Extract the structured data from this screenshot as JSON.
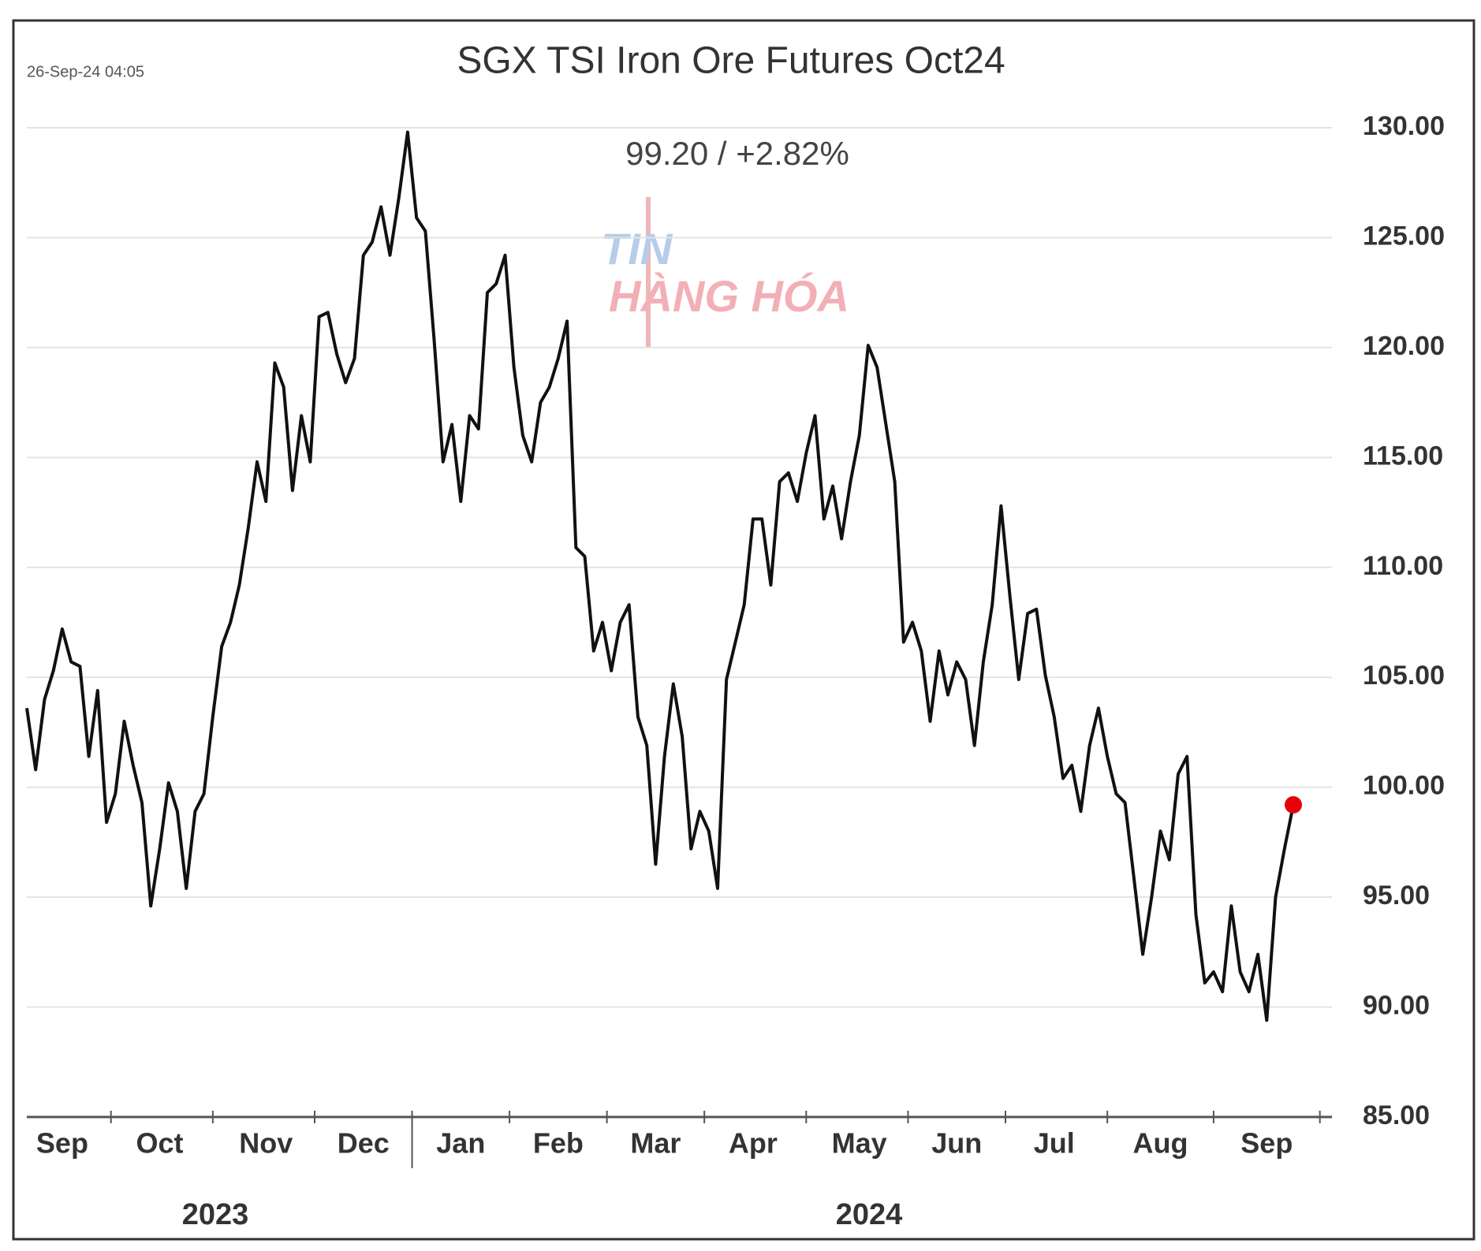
{
  "chart_data": {
    "type": "line",
    "title": "SGX TSI Iron Ore Futures Oct24",
    "subtitle": "99.20  /  +2.82%",
    "timestamp": "26-Sep-24 04:05",
    "watermark": [
      "TIN",
      "HÀNG HÓA"
    ],
    "annotations": [
      "2023",
      "2024"
    ],
    "categories": [
      null,
      null,
      null,
      null,
      "Sep",
      null,
      null,
      null,
      null,
      null,
      null,
      null,
      null,
      null,
      null,
      "Oct",
      null,
      null,
      null,
      null,
      null,
      null,
      null,
      null,
      null,
      null,
      null,
      "Nov",
      null,
      null,
      null,
      null,
      null,
      null,
      null,
      null,
      null,
      null,
      "Dec",
      null,
      null,
      null,
      null,
      null,
      null,
      null,
      null,
      null,
      null,
      "Jan",
      null,
      null,
      null,
      null,
      null,
      null,
      null,
      null,
      null,
      null,
      "Feb",
      null,
      null,
      null,
      null,
      null,
      null,
      null,
      null,
      null,
      null,
      "Mar",
      null,
      null,
      null,
      null,
      null,
      null,
      null,
      null,
      null,
      null,
      "Apr",
      null,
      null,
      null,
      null,
      null,
      null,
      null,
      null,
      null,
      null,
      null,
      "May",
      null,
      null,
      null,
      null,
      null,
      null,
      null,
      null,
      null,
      null,
      "Jun",
      null,
      null,
      null,
      null,
      null,
      null,
      null,
      null,
      null,
      null,
      "Jul",
      null,
      null,
      null,
      null,
      null,
      null,
      null,
      null,
      null,
      null,
      null,
      "Aug",
      null,
      null,
      null,
      null,
      null,
      null,
      null,
      null,
      null,
      null,
      null,
      "Sep",
      null,
      null,
      null
    ],
    "series": [
      {
        "name": "SGX TSI Iron Ore Futures Oct24",
        "color": "#111111",
        "values": [
          103.6,
          100.8,
          104.0,
          105.3,
          107.2,
          105.7,
          105.5,
          101.4,
          104.4,
          98.4,
          99.7,
          103.0,
          101.0,
          99.3,
          94.6,
          97.2,
          100.2,
          98.9,
          95.4,
          98.9,
          99.7,
          103.2,
          106.4,
          107.5,
          109.2,
          111.8,
          114.8,
          113.0,
          119.3,
          118.2,
          113.5,
          116.9,
          114.8,
          121.4,
          121.6,
          119.7,
          118.4,
          119.5,
          124.2,
          124.8,
          126.4,
          124.2,
          126.8,
          129.8,
          125.9,
          125.3,
          120.3,
          114.8,
          116.5,
          113.0,
          116.9,
          116.3,
          122.5,
          122.9,
          124.2,
          119.1,
          116.0,
          114.8,
          117.5,
          118.2,
          119.5,
          121.2,
          110.9,
          110.5,
          106.2,
          107.5,
          105.3,
          107.5,
          108.3,
          103.2,
          101.9,
          96.5,
          101.4,
          104.7,
          102.3,
          97.2,
          98.9,
          98.0,
          95.4,
          104.9,
          106.6,
          108.3,
          112.2,
          112.2,
          109.2,
          113.9,
          114.3,
          113.0,
          115.2,
          116.9,
          112.2,
          113.7,
          111.3,
          113.9,
          116.0,
          120.1,
          119.1,
          116.5,
          113.9,
          106.6,
          107.5,
          106.2,
          103.0,
          106.2,
          104.2,
          105.7,
          104.9,
          101.9,
          105.7,
          108.3,
          112.8,
          108.7,
          104.9,
          107.9,
          108.1,
          105.1,
          103.2,
          100.4,
          101.0,
          98.9,
          101.9,
          103.6,
          101.4,
          99.7,
          99.3,
          95.9,
          92.4,
          95.0,
          98.0,
          96.7,
          100.6,
          101.4,
          94.2,
          91.1,
          91.6,
          90.7,
          94.6,
          91.6,
          90.7,
          92.4,
          89.4,
          95.0,
          97.2,
          99.2
        ]
      }
    ],
    "last_point_color": "#e8000b",
    "ylim": [
      85,
      130
    ],
    "yticks": [
      {
        "value": 85,
        "label": "85.00"
      },
      {
        "value": 90,
        "label": "90.00"
      },
      {
        "value": 95,
        "label": "95.00"
      },
      {
        "value": 100,
        "label": "100.00"
      },
      {
        "value": 105,
        "label": "105.00"
      },
      {
        "value": 110,
        "label": "110.00"
      },
      {
        "value": 115,
        "label": "115.00"
      },
      {
        "value": 120,
        "label": "120.00"
      },
      {
        "value": 125,
        "label": "125.00"
      },
      {
        "value": 130,
        "label": "130.00"
      }
    ],
    "grid": true
  }
}
